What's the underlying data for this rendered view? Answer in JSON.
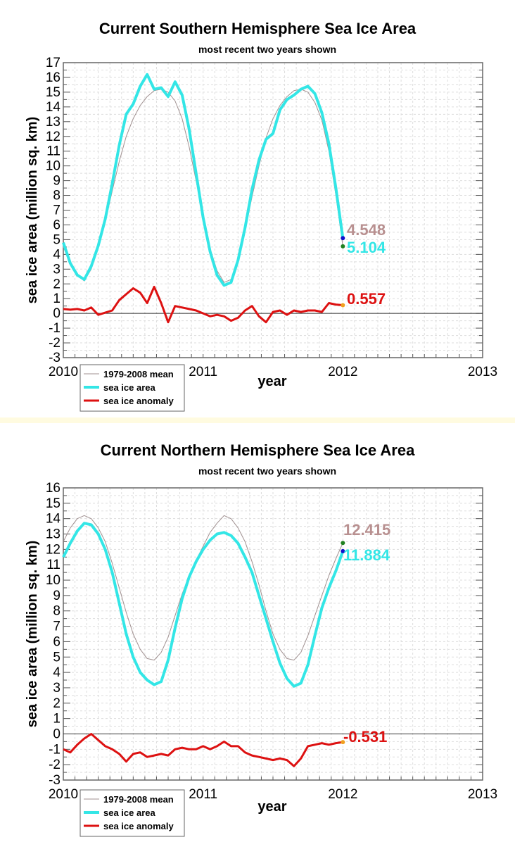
{
  "chart_data": [
    {
      "type": "line",
      "title": "Current Southern Hemisphere Sea Ice Area",
      "subtitle": "most recent two years shown",
      "xlabel": "year",
      "ylabel": "sea ice area (million sq. km)",
      "xlim": [
        2010,
        2013
      ],
      "ylim": [
        -3,
        17
      ],
      "xticks": [
        "2010",
        "2011",
        "2012",
        "2013"
      ],
      "yticks": [
        "17",
        "16",
        "15",
        "14",
        "13",
        "12",
        "11",
        "10",
        "9",
        "8",
        "7",
        "6",
        "5",
        "4",
        "3",
        "2",
        "1",
        "0",
        "-1",
        "-2",
        "-3"
      ],
      "grid": true,
      "legend": {
        "placement": "bottom-left",
        "entries": [
          "1979-2008 mean",
          "sea ice area",
          "sea ice anomaly"
        ]
      },
      "x_start": 2010.0,
      "x_step": 0.05,
      "series": [
        {
          "name": "1979-2008 mean",
          "color": "#a09090",
          "values": [
            4.5,
            3.4,
            2.6,
            2.2,
            3.0,
            4.5,
            6.2,
            8.3,
            10.3,
            12.0,
            13.2,
            14.1,
            14.7,
            15.1,
            15.2,
            15.0,
            14.4,
            13.2,
            11.3,
            9.0,
            6.6,
            4.4,
            2.9,
            2.1,
            2.3,
            3.5,
            5.6,
            7.9,
            10.0,
            11.9,
            13.2,
            14.1,
            14.7,
            15.1,
            15.2,
            15.0,
            14.3,
            13.1,
            11.0,
            8.0,
            4.55
          ]
        },
        {
          "name": "sea ice area",
          "color": "#33e6e6",
          "values": [
            4.8,
            3.4,
            2.6,
            2.3,
            3.2,
            4.6,
            6.4,
            8.8,
            11.4,
            13.5,
            14.2,
            15.4,
            16.2,
            15.2,
            15.3,
            14.7,
            15.7,
            14.8,
            12.5,
            9.5,
            6.5,
            4.2,
            2.6,
            1.9,
            2.1,
            3.6,
            5.8,
            8.4,
            10.4,
            11.8,
            12.2,
            13.8,
            14.5,
            14.8,
            15.2,
            15.4,
            14.9,
            13.6,
            11.5,
            8.5,
            5.104
          ]
        },
        {
          "name": "sea ice anomaly",
          "color": "#dd1111",
          "values": [
            0.3,
            0.25,
            0.3,
            0.2,
            0.4,
            -0.1,
            0.05,
            0.2,
            0.9,
            1.3,
            1.7,
            1.4,
            0.7,
            1.8,
            0.7,
            -0.6,
            0.5,
            0.4,
            0.3,
            0.2,
            0.0,
            -0.2,
            -0.1,
            -0.2,
            -0.5,
            -0.3,
            0.2,
            0.5,
            -0.2,
            -0.6,
            0.1,
            0.2,
            -0.1,
            0.2,
            0.1,
            0.2,
            0.2,
            0.1,
            0.7,
            0.6,
            0.557
          ]
        }
      ],
      "end_labels": {
        "mean": "4.548",
        "area": "5.104",
        "anomaly": "0.557"
      },
      "end_values": {
        "mean": 4.548,
        "area": 5.104,
        "anomaly": 0.557
      }
    },
    {
      "type": "line",
      "title": "Current Northern Hemisphere Sea Ice Area",
      "subtitle": "most recent two years shown",
      "xlabel": "year",
      "ylabel": "sea ice area (million sq. km)",
      "xlim": [
        2010,
        2013
      ],
      "ylim": [
        -3,
        16
      ],
      "xticks": [
        "2010",
        "2011",
        "2012",
        "2013"
      ],
      "yticks": [
        "16",
        "15",
        "14",
        "13",
        "12",
        "11",
        "10",
        "9",
        "8",
        "7",
        "6",
        "5",
        "4",
        "3",
        "2",
        "1",
        "0",
        "-1",
        "-2",
        "-3"
      ],
      "grid": true,
      "legend": {
        "placement": "bottom-left",
        "entries": [
          "1979-2008 mean",
          "sea ice area",
          "sea ice anomaly"
        ]
      },
      "x_start": 2010.0,
      "x_step": 0.05,
      "series": [
        {
          "name": "1979-2008 mean",
          "color": "#a09090",
          "values": [
            12.5,
            13.4,
            14.0,
            14.2,
            14.0,
            13.4,
            12.5,
            11.1,
            9.5,
            7.9,
            6.5,
            5.5,
            4.9,
            4.8,
            5.3,
            6.3,
            7.7,
            9.1,
            10.3,
            11.3,
            12.2,
            13.1,
            13.7,
            14.2,
            14.0,
            13.4,
            12.5,
            11.2,
            9.7,
            8.0,
            6.5,
            5.5,
            4.9,
            4.8,
            5.3,
            6.4,
            7.7,
            9.0,
            10.3,
            11.4,
            12.415
          ]
        },
        {
          "name": "sea ice area",
          "color": "#33e6e6",
          "values": [
            11.5,
            12.4,
            13.2,
            13.7,
            13.6,
            13.0,
            12.0,
            10.5,
            8.5,
            6.5,
            5.0,
            4.0,
            3.5,
            3.2,
            3.4,
            4.8,
            6.9,
            8.8,
            10.2,
            11.2,
            12.0,
            12.6,
            13.0,
            13.1,
            12.9,
            12.4,
            11.5,
            10.5,
            9.0,
            7.5,
            6.0,
            4.6,
            3.6,
            3.1,
            3.3,
            4.5,
            6.4,
            8.2,
            9.5,
            10.6,
            11.884
          ]
        },
        {
          "name": "sea ice anomaly",
          "color": "#dd1111",
          "values": [
            -1.0,
            -1.2,
            -0.7,
            -0.3,
            0.0,
            -0.4,
            -0.8,
            -1.0,
            -1.3,
            -1.8,
            -1.3,
            -1.2,
            -1.5,
            -1.4,
            -1.3,
            -1.4,
            -1.0,
            -0.9,
            -1.0,
            -1.0,
            -0.8,
            -1.0,
            -0.8,
            -0.5,
            -0.8,
            -0.8,
            -1.2,
            -1.4,
            -1.5,
            -1.6,
            -1.7,
            -1.6,
            -1.7,
            -2.1,
            -1.6,
            -0.8,
            -0.7,
            -0.6,
            -0.7,
            -0.6,
            -0.531
          ]
        }
      ],
      "end_labels": {
        "mean": "12.415",
        "area": "11.884",
        "anomaly": "-0.531"
      },
      "end_values": {
        "mean": 12.415,
        "area": 11.884,
        "anomaly": -0.531
      }
    }
  ],
  "colors": {
    "area": "#33e6e6",
    "mean": "#a09090",
    "anomaly": "#dd1111",
    "mean_label": "#b89090",
    "dot_area": "#1010cc",
    "dot_mean": "#208020",
    "dot_anomaly": "#f0a020"
  }
}
